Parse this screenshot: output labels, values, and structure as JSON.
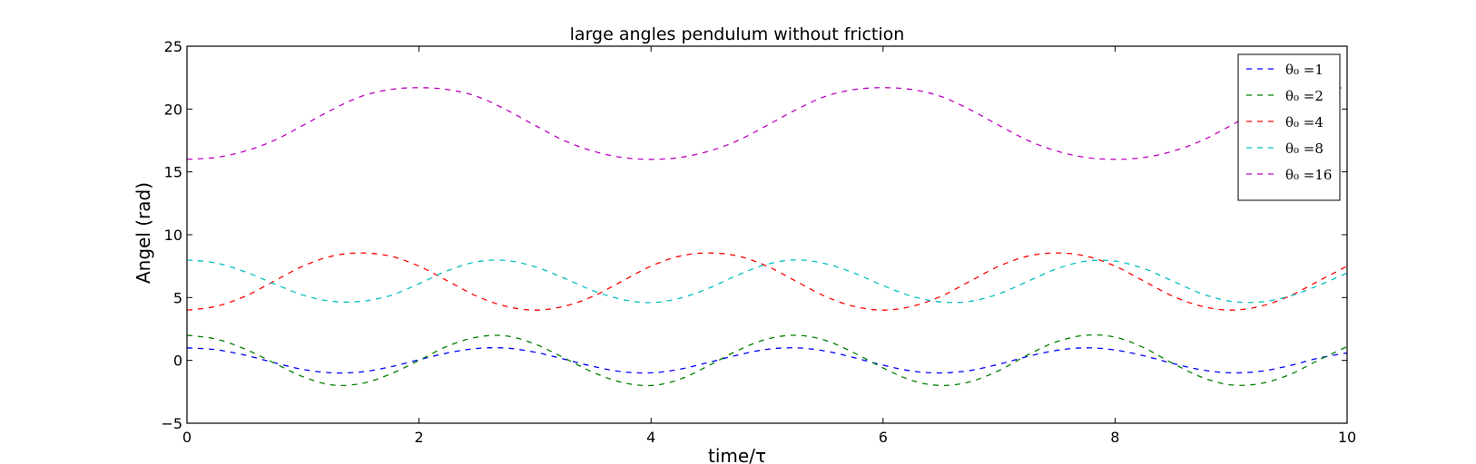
{
  "chart_data": {
    "type": "line",
    "title": "large angles pendulum without friction",
    "xlabel": "time/τ",
    "ylabel": "Angel (rad)",
    "xlim": [
      0,
      10
    ],
    "ylim": [
      -5,
      25
    ],
    "xticks": [
      "0",
      "2",
      "4",
      "6",
      "8",
      "10"
    ],
    "yticks": [
      "−5",
      "0",
      "5",
      "10",
      "15",
      "20",
      "25"
    ],
    "grid": false,
    "legend_position": "top-right",
    "line_style": "dashed",
    "series": [
      {
        "name": "θ₀ =1",
        "color": "#0000ff",
        "x": [
          0,
          0.25,
          0.5,
          0.75,
          1,
          1.25,
          1.5,
          1.75,
          2,
          2.25,
          2.5,
          2.75,
          3,
          3.25,
          3.5,
          3.75,
          4,
          4.25,
          4.5,
          4.75,
          5,
          5.25,
          5.5,
          5.75,
          6,
          6.25,
          6.5,
          6.75,
          7,
          7.25,
          7.5,
          7.75,
          8,
          8.25,
          8.5,
          8.75,
          9,
          9.25,
          9.5,
          9.75,
          10
        ],
        "y": [
          1.0,
          0.85,
          0.42,
          -0.18,
          -0.72,
          -0.99,
          -0.92,
          -0.52,
          0.05,
          0.6,
          0.95,
          0.98,
          0.65,
          0.1,
          -0.48,
          -0.9,
          -0.99,
          -0.7,
          -0.15,
          0.43,
          0.88,
          1.0,
          0.75,
          0.22,
          -0.38,
          -0.85,
          -1.0,
          -0.8,
          -0.3,
          0.32,
          0.8,
          1.0,
          0.83,
          0.36,
          -0.25,
          -0.76,
          -0.99,
          -0.87,
          -0.43,
          0.17,
          0.6
        ]
      },
      {
        "name": "θ₀ =2",
        "color": "#007f00",
        "x": [
          0,
          0.25,
          0.5,
          0.75,
          1,
          1.25,
          1.5,
          1.75,
          2,
          2.25,
          2.5,
          2.75,
          3,
          3.25,
          3.5,
          3.75,
          4,
          4.25,
          4.5,
          4.75,
          5,
          5.25,
          5.5,
          5.75,
          6,
          6.25,
          6.5,
          6.75,
          7,
          7.25,
          7.5,
          7.75,
          8,
          8.25,
          8.5,
          8.75,
          9,
          9.25,
          9.5,
          9.75,
          10
        ],
        "y": [
          2.0,
          1.7,
          0.9,
          -0.2,
          -1.3,
          -1.95,
          -1.85,
          -1.1,
          0.0,
          1.15,
          1.85,
          1.95,
          1.3,
          0.2,
          -0.95,
          -1.75,
          -2.0,
          -1.5,
          -0.4,
          0.8,
          1.7,
          2.0,
          1.6,
          0.6,
          -0.6,
          -1.6,
          -2.0,
          -1.7,
          -0.8,
          0.45,
          1.5,
          2.0,
          1.85,
          1.0,
          -0.25,
          -1.35,
          -1.95,
          -1.85,
          -1.15,
          0.0,
          1.1
        ]
      },
      {
        "name": "θ₀ =4",
        "color": "#ff0000",
        "x": [
          0,
          0.25,
          0.5,
          0.75,
          1,
          1.25,
          1.5,
          1.75,
          2,
          2.25,
          2.5,
          2.75,
          3,
          3.25,
          3.5,
          3.75,
          4,
          4.25,
          4.5,
          4.75,
          5,
          5.25,
          5.5,
          5.75,
          6,
          6.25,
          6.5,
          6.75,
          7,
          7.25,
          7.5,
          7.75,
          8,
          8.25,
          8.5,
          8.75,
          9,
          9.25,
          9.5,
          9.75,
          10
        ],
        "y": [
          4.0,
          4.3,
          5.1,
          6.3,
          7.5,
          8.3,
          8.55,
          8.3,
          7.5,
          6.3,
          5.1,
          4.3,
          4.0,
          4.3,
          5.1,
          6.3,
          7.5,
          8.3,
          8.55,
          8.3,
          7.5,
          6.3,
          5.1,
          4.3,
          4.0,
          4.3,
          5.1,
          6.3,
          7.5,
          8.3,
          8.55,
          8.3,
          7.5,
          6.3,
          5.1,
          4.3,
          4.0,
          4.3,
          5.1,
          6.3,
          7.5
        ]
      },
      {
        "name": "θ₀ =8",
        "color": "#00bfbf",
        "x": [
          0,
          0.25,
          0.5,
          0.75,
          1,
          1.25,
          1.5,
          1.75,
          2,
          2.25,
          2.5,
          2.75,
          3,
          3.25,
          3.5,
          3.75,
          4,
          4.25,
          4.5,
          4.75,
          5,
          5.25,
          5.5,
          5.75,
          6,
          6.25,
          6.5,
          6.75,
          7,
          7.25,
          7.5,
          7.75,
          8,
          8.25,
          8.5,
          8.75,
          9,
          9.25,
          9.5,
          9.75,
          10
        ],
        "y": [
          8.0,
          7.75,
          7.05,
          6.1,
          5.2,
          4.7,
          4.7,
          5.15,
          6.1,
          7.15,
          7.85,
          7.95,
          7.45,
          6.55,
          5.55,
          4.85,
          4.6,
          4.95,
          5.75,
          6.8,
          7.65,
          8.0,
          7.7,
          6.95,
          5.95,
          5.1,
          4.65,
          4.7,
          5.3,
          6.3,
          7.3,
          7.9,
          7.9,
          7.3,
          6.3,
          5.3,
          4.7,
          4.65,
          5.1,
          5.95,
          6.95
        ]
      },
      {
        "name": "θ₀ =16",
        "color": "#bf00bf",
        "x": [
          0,
          0.25,
          0.5,
          0.75,
          1,
          1.25,
          1.5,
          1.75,
          2,
          2.25,
          2.5,
          2.75,
          3,
          3.25,
          3.5,
          3.75,
          4,
          4.25,
          4.5,
          4.75,
          5,
          5.25,
          5.5,
          5.75,
          6,
          6.25,
          6.5,
          6.75,
          7,
          7.25,
          7.5,
          7.75,
          8,
          8.25,
          8.5,
          8.75,
          9,
          9.25,
          9.5,
          9.75,
          10
        ],
        "y": [
          16.0,
          16.15,
          16.65,
          17.5,
          18.7,
          19.95,
          21.0,
          21.55,
          21.7,
          21.55,
          21.0,
          19.95,
          18.7,
          17.5,
          16.65,
          16.15,
          16.0,
          16.15,
          16.65,
          17.5,
          18.7,
          19.95,
          21.0,
          21.55,
          21.7,
          21.55,
          21.0,
          19.95,
          18.7,
          17.5,
          16.65,
          16.15,
          16.0,
          16.15,
          16.65,
          17.5,
          18.7,
          19.95,
          21.0,
          21.55,
          21.7
        ]
      }
    ]
  }
}
